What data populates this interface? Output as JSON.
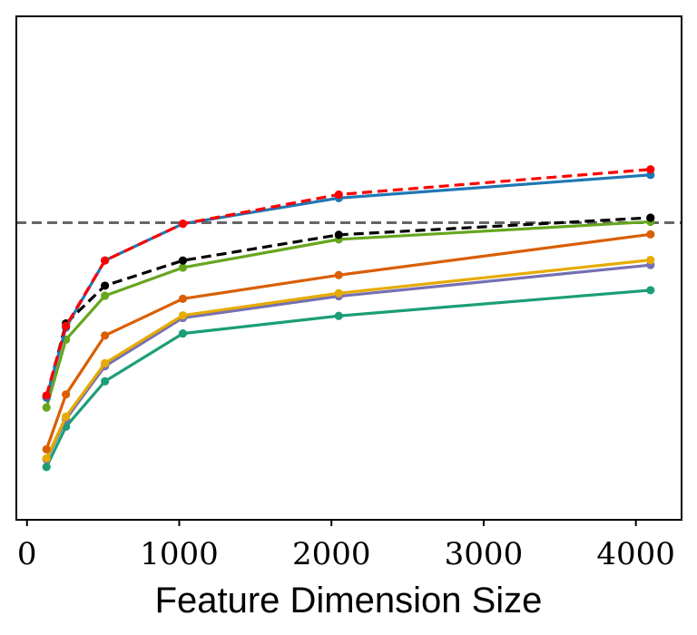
{
  "chart_data": {
    "type": "line",
    "title": "",
    "xlabel": "Feature Dimension Size",
    "ylabel": "",
    "xlim": [
      -70,
      4300
    ],
    "ylim": [
      0,
      100
    ],
    "x_ticks": [
      0,
      1000,
      2000,
      3000,
      4000
    ],
    "x_tick_labels": [
      "0",
      "1000",
      "2000",
      "3000",
      "4000"
    ],
    "y_ticks_visible": false,
    "grid": false,
    "reference_line": {
      "y": 59,
      "color": "#666666",
      "style": "dashed"
    },
    "x": [
      128,
      256,
      512,
      1024,
      2048,
      4096
    ],
    "series": [
      {
        "name": "series-red-dashed",
        "color": "#ff0000",
        "dashed": true,
        "values": [
          24.7,
          38.5,
          51.5,
          58.8,
          64.6,
          69.6
        ]
      },
      {
        "name": "series-blue",
        "color": "#1f77b4",
        "dashed": false,
        "values": [
          24.3,
          38.2,
          51.5,
          58.8,
          63.9,
          68.5
        ]
      },
      {
        "name": "series-black-dashed",
        "color": "#000000",
        "dashed": true,
        "values": [
          24.3,
          39.0,
          46.5,
          51.5,
          56.6,
          60.0
        ]
      },
      {
        "name": "series-green",
        "color": "#66a61e",
        "dashed": false,
        "values": [
          22.3,
          35.8,
          44.5,
          50.1,
          55.7,
          59.2
        ]
      },
      {
        "name": "series-orange",
        "color": "#d95f02",
        "dashed": false,
        "values": [
          14.0,
          24.9,
          36.6,
          43.9,
          48.6,
          56.7
        ]
      },
      {
        "name": "series-yellow",
        "color": "#e6ab02",
        "dashed": false,
        "values": [
          12.2,
          20.5,
          31.1,
          40.6,
          45.0,
          51.6
        ]
      },
      {
        "name": "series-purple",
        "color": "#7570b3",
        "dashed": false,
        "values": [
          12.0,
          20.0,
          30.5,
          40.1,
          44.4,
          50.6
        ]
      },
      {
        "name": "series-teal",
        "color": "#1b9e77",
        "dashed": false,
        "values": [
          10.5,
          18.5,
          27.5,
          37.0,
          40.5,
          45.6
        ]
      }
    ]
  }
}
